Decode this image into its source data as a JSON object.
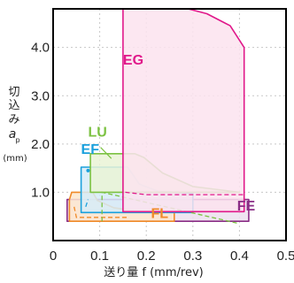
{
  "chart_data": {
    "type": "area",
    "title": "",
    "xlabel": "送り量 f (mm/rev)",
    "ylabel": "切込み a_p (mm)",
    "ylabel_lines": [
      "切",
      "込",
      "み",
      "a",
      "p",
      "(mm)"
    ],
    "xlim": [
      0,
      0.5
    ],
    "ylim": [
      0,
      4.8
    ],
    "x_ticks": [
      0,
      0.1,
      0.2,
      0.3,
      0.4,
      0.5
    ],
    "x_tick_labels": [
      "0",
      "0.1",
      "0.2",
      "0.3",
      "0.4",
      "0.5"
    ],
    "y_ticks": [
      1.0,
      2.0,
      3.0,
      4.0
    ],
    "y_tick_labels": [
      "1.0",
      "2.0",
      "3.0",
      "4.0"
    ],
    "grid": true,
    "series": [
      {
        "name": "FE",
        "color": "#8a2d86",
        "fill": "#ece0ee",
        "outline": [
          [
            0.03,
            0.4
          ],
          [
            0.42,
            0.4
          ],
          [
            0.42,
            0.85
          ],
          [
            0.03,
            0.85
          ]
        ],
        "label_pos": [
          0.395,
          0.62
        ]
      },
      {
        "name": "FL",
        "color": "#f08a28",
        "fill": "#fde7cf",
        "outline": [
          [
            0.035,
            0.4
          ],
          [
            0.26,
            0.4
          ],
          [
            0.26,
            0.58
          ],
          [
            0.175,
            0.62
          ],
          [
            0.13,
            0.68
          ],
          [
            0.095,
            0.83
          ],
          [
            0.085,
            1.0
          ],
          [
            0.04,
            1.0
          ],
          [
            0.035,
            0.85
          ]
        ],
        "inner": [
          [
            0.045,
            0.7
          ],
          [
            0.05,
            0.48
          ],
          [
            0.16,
            0.48
          ]
        ],
        "label_pos": [
          0.21,
          0.47
        ]
      },
      {
        "name": "EF",
        "color": "#1aa0dc",
        "fill": "#d6ecf8",
        "outline": [
          [
            0.06,
            0.58
          ],
          [
            0.3,
            0.58
          ],
          [
            0.3,
            0.98
          ],
          [
            0.225,
            1.02
          ],
          [
            0.185,
            1.17
          ],
          [
            0.16,
            1.52
          ],
          [
            0.06,
            1.52
          ]
        ],
        "inner": [
          [
            0.07,
            0.7
          ],
          [
            0.075,
            0.85
          ]
        ],
        "label_pos": [
          0.06,
          1.8
        ]
      },
      {
        "name": "LU",
        "color": "#7cc242",
        "fill": "#eaf3d6",
        "outline": [
          [
            0.08,
            1.0
          ],
          [
            0.4,
            1.0
          ],
          [
            0.3,
            1.12
          ],
          [
            0.235,
            1.4
          ],
          [
            0.195,
            1.72
          ],
          [
            0.175,
            1.8
          ],
          [
            0.08,
            1.8
          ]
        ],
        "inner": [
          [
            0.105,
            0.4
          ],
          [
            0.105,
            1.0
          ],
          [
            0.4,
            0.35
          ]
        ],
        "label_pos": [
          0.075,
          2.15
        ]
      },
      {
        "name": "EG",
        "color": "#e0188a",
        "fill": "#fce3ee",
        "outline": [
          [
            0.15,
            0.6
          ],
          [
            0.41,
            0.6
          ],
          [
            0.41,
            4.0
          ],
          [
            0.38,
            4.45
          ],
          [
            0.33,
            4.7
          ],
          [
            0.29,
            4.8
          ],
          [
            0.27,
            5.0
          ],
          [
            0.15,
            5.0
          ]
        ],
        "inner": [
          [
            0.155,
            1.0
          ],
          [
            0.2,
            0.95
          ],
          [
            0.41,
            0.95
          ]
        ],
        "label_pos": [
          0.15,
          3.65
        ]
      }
    ]
  }
}
